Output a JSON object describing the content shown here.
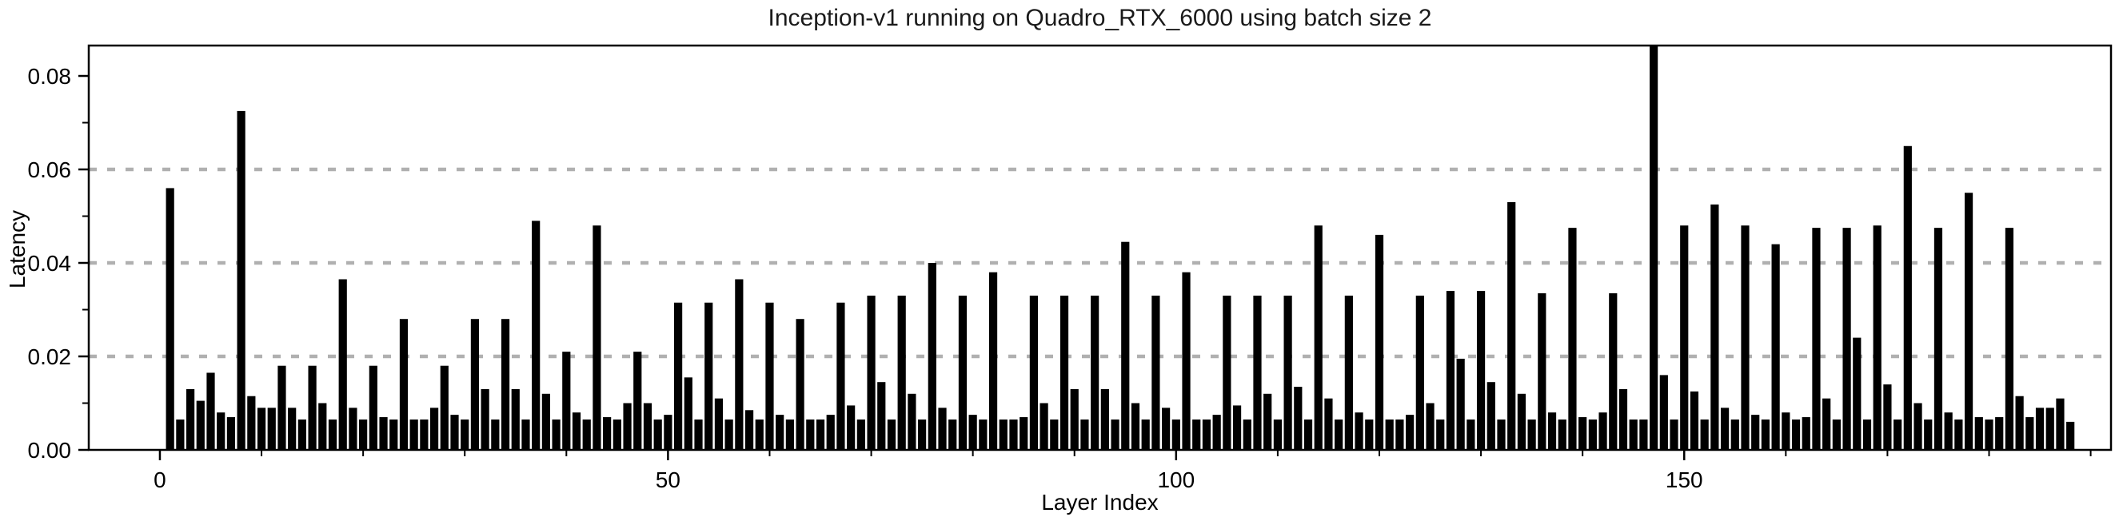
{
  "chart_data": {
    "type": "bar",
    "title": "Inception-v1 running on Quadro_RTX_6000 using batch size 2",
    "xlabel": "Layer Index",
    "ylabel": "Latency",
    "bar_color": "#000000",
    "grid_color": "#b0b0b0",
    "axis_color": "#000000",
    "grid_style": "dotted",
    "legend": "none",
    "x_first": 1,
    "xlim": [
      -7,
      192
    ],
    "ylim": [
      0,
      0.0865
    ],
    "xtick_values": [
      0,
      50,
      100,
      150
    ],
    "xtick_labels": [
      "0",
      "50",
      "100",
      "150"
    ],
    "x_minor_step": 10,
    "ytick_values": [
      0,
      0.02,
      0.04,
      0.06,
      0.08
    ],
    "ytick_labels": [
      "0.00",
      "0.02",
      "0.04",
      "0.06",
      "0.08"
    ],
    "y_minor_step": 0.01,
    "grid_values": [
      0.02,
      0.04,
      0.06
    ],
    "values": [
      0.056,
      0.0065,
      0.013,
      0.0105,
      0.0165,
      0.008,
      0.007,
      0.0725,
      0.0115,
      0.009,
      0.009,
      0.018,
      0.009,
      0.0065,
      0.018,
      0.01,
      0.0065,
      0.0365,
      0.009,
      0.0065,
      0.018,
      0.007,
      0.0065,
      0.028,
      0.0065,
      0.0065,
      0.009,
      0.018,
      0.0075,
      0.0065,
      0.028,
      0.013,
      0.0065,
      0.028,
      0.013,
      0.0065,
      0.049,
      0.012,
      0.0065,
      0.021,
      0.008,
      0.0065,
      0.048,
      0.007,
      0.0065,
      0.01,
      0.021,
      0.01,
      0.0065,
      0.0075,
      0.0315,
      0.0155,
      0.0065,
      0.0315,
      0.011,
      0.0065,
      0.0365,
      0.0085,
      0.0065,
      0.0315,
      0.0075,
      0.0065,
      0.028,
      0.0065,
      0.0065,
      0.0075,
      0.0315,
      0.0095,
      0.0065,
      0.033,
      0.0145,
      0.0065,
      0.033,
      0.012,
      0.0065,
      0.04,
      0.009,
      0.0065,
      0.033,
      0.0075,
      0.0065,
      0.038,
      0.0065,
      0.0065,
      0.007,
      0.033,
      0.01,
      0.0065,
      0.033,
      0.013,
      0.0065,
      0.033,
      0.013,
      0.0065,
      0.0445,
      0.01,
      0.0065,
      0.033,
      0.009,
      0.0065,
      0.038,
      0.0065,
      0.0065,
      0.0075,
      0.033,
      0.0095,
      0.0065,
      0.033,
      0.012,
      0.0065,
      0.033,
      0.0135,
      0.0065,
      0.048,
      0.011,
      0.0065,
      0.033,
      0.008,
      0.0065,
      0.046,
      0.0065,
      0.0065,
      0.0075,
      0.033,
      0.01,
      0.0065,
      0.034,
      0.0195,
      0.0065,
      0.034,
      0.0145,
      0.0065,
      0.053,
      0.012,
      0.0065,
      0.0335,
      0.008,
      0.0065,
      0.0475,
      0.007,
      0.0065,
      0.008,
      0.0335,
      0.013,
      0.0065,
      0.0065,
      0.0865,
      0.016,
      0.0065,
      0.048,
      0.0125,
      0.0065,
      0.0525,
      0.009,
      0.0065,
      0.048,
      0.0075,
      0.0065,
      0.044,
      0.008,
      0.0065,
      0.007,
      0.0475,
      0.011,
      0.0065,
      0.0475,
      0.024,
      0.0065,
      0.048,
      0.014,
      0.0065,
      0.065,
      0.01,
      0.0065,
      0.0475,
      0.008,
      0.0065,
      0.055,
      0.007,
      0.0065,
      0.007,
      0.0475,
      0.0115,
      0.007,
      0.009,
      0.009,
      0.011,
      0.006
    ]
  }
}
